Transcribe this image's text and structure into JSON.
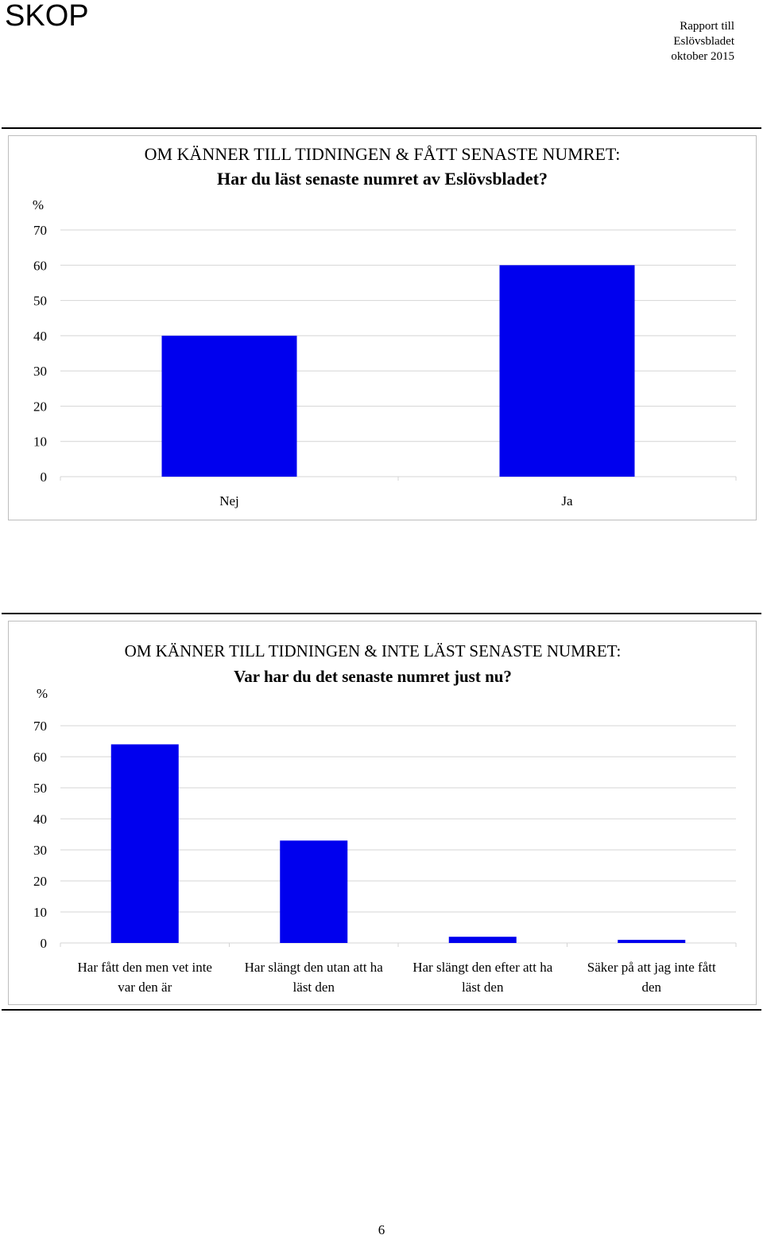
{
  "header": {
    "logo": "SKOP",
    "report_lines": [
      "Rapport till",
      "Eslövsbladet",
      "oktober 2015"
    ]
  },
  "chart_data": [
    {
      "type": "bar",
      "title": "OM KÄNNER TILL TIDNINGEN & FÅTT SENASTE NUMRET:",
      "subtitle": "Har du läst senaste numret av Eslövsbladet?",
      "ylabel": "%",
      "ylim": [
        0,
        70
      ],
      "yticks": [
        0,
        10,
        20,
        30,
        40,
        50,
        60,
        70
      ],
      "categories": [
        "Nej",
        "Ja"
      ],
      "values": [
        40,
        60
      ],
      "bar_color": "#0000ee",
      "grid": true
    },
    {
      "type": "bar",
      "title": "OM KÄNNER TILL TIDNINGEN & INTE LÄST SENASTE NUMRET:",
      "subtitle": "Var har du det senaste numret just nu?",
      "ylabel": "%",
      "ylim": [
        0,
        70
      ],
      "yticks": [
        0,
        10,
        20,
        30,
        40,
        50,
        60,
        70
      ],
      "categories": [
        [
          "Har fått den men vet inte",
          "var den är"
        ],
        [
          "Har slängt den utan att ha",
          "läst den"
        ],
        [
          "Har slängt den efter att ha",
          "läst den"
        ],
        [
          "Säker på att jag inte fått",
          "den"
        ]
      ],
      "values": [
        64,
        33,
        2,
        1
      ],
      "bar_color": "#0000ee",
      "grid": true
    }
  ],
  "footer": {
    "page_number": "6"
  }
}
